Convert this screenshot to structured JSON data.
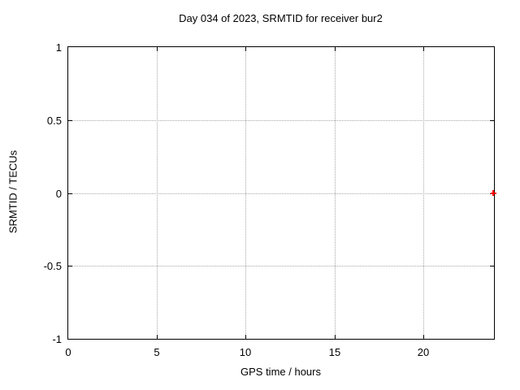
{
  "chart_data": {
    "type": "scatter",
    "title": "Day 034 of 2023, SRMTID for receiver bur2",
    "xlabel": "GPS time / hours",
    "ylabel": "SRMTID / TECUs",
    "xlim": [
      0,
      24
    ],
    "ylim": [
      -1,
      1
    ],
    "x_ticks": [
      0,
      5,
      10,
      15,
      20
    ],
    "x_tick_labels": [
      "0",
      "5",
      "10",
      "15",
      "20"
    ],
    "y_ticks": [
      1,
      0.5,
      0,
      -0.5,
      -1
    ],
    "y_tick_labels": [
      "1",
      "0.5",
      "0",
      "-0.5",
      "-1"
    ],
    "grid": true,
    "legend": "none",
    "series": [
      {
        "name": "SRMTID",
        "marker": "plus",
        "color": "#ff0000",
        "points": [
          {
            "x": 24,
            "y": 0
          }
        ]
      }
    ]
  },
  "colors": {
    "background": "#ffffff",
    "border": "#000000",
    "grid": "#a8a8a8",
    "text": "#000000",
    "marker": "#ff0000"
  }
}
